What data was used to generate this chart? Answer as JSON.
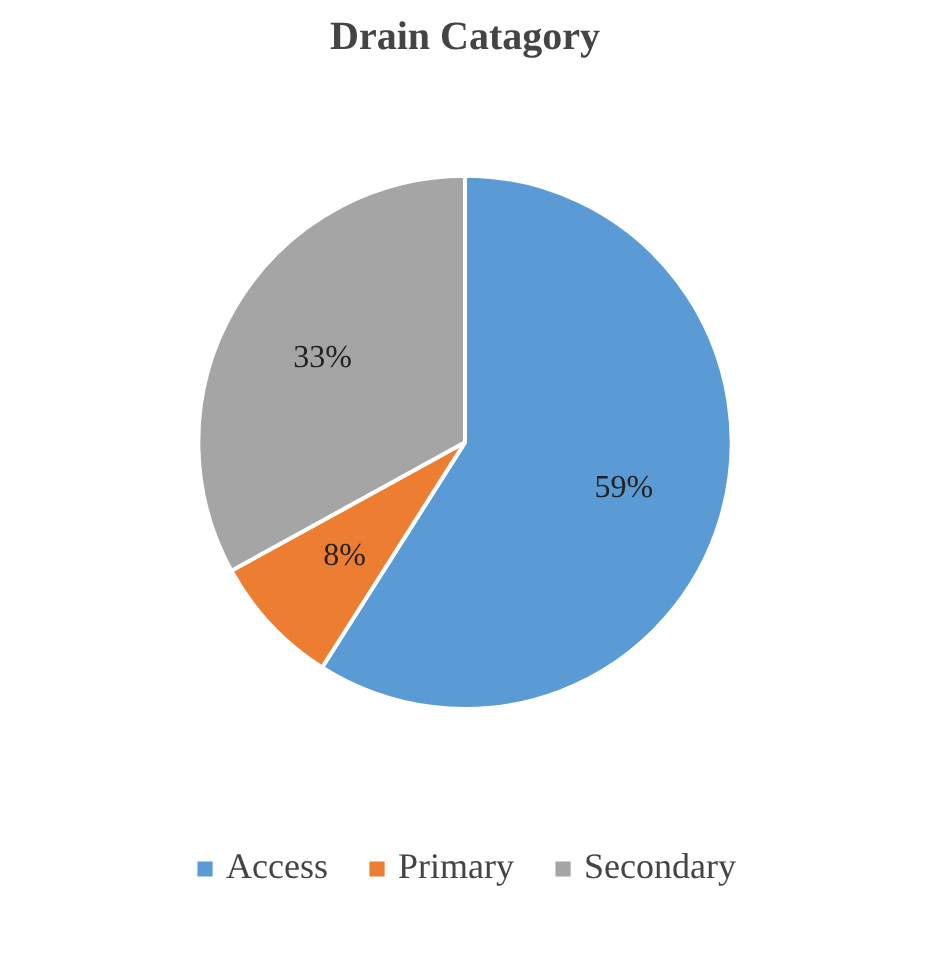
{
  "chart_data": {
    "type": "pie",
    "title": "Drain Catagory",
    "categories": [
      "Access",
      "Primary",
      "Secondary"
    ],
    "values": [
      59,
      8,
      33
    ],
    "colors": [
      "#5b9bd5",
      "#ed7d31",
      "#a5a5a5"
    ],
    "value_labels": [
      "59%",
      "8%",
      "33%"
    ],
    "legend": "bottom"
  }
}
